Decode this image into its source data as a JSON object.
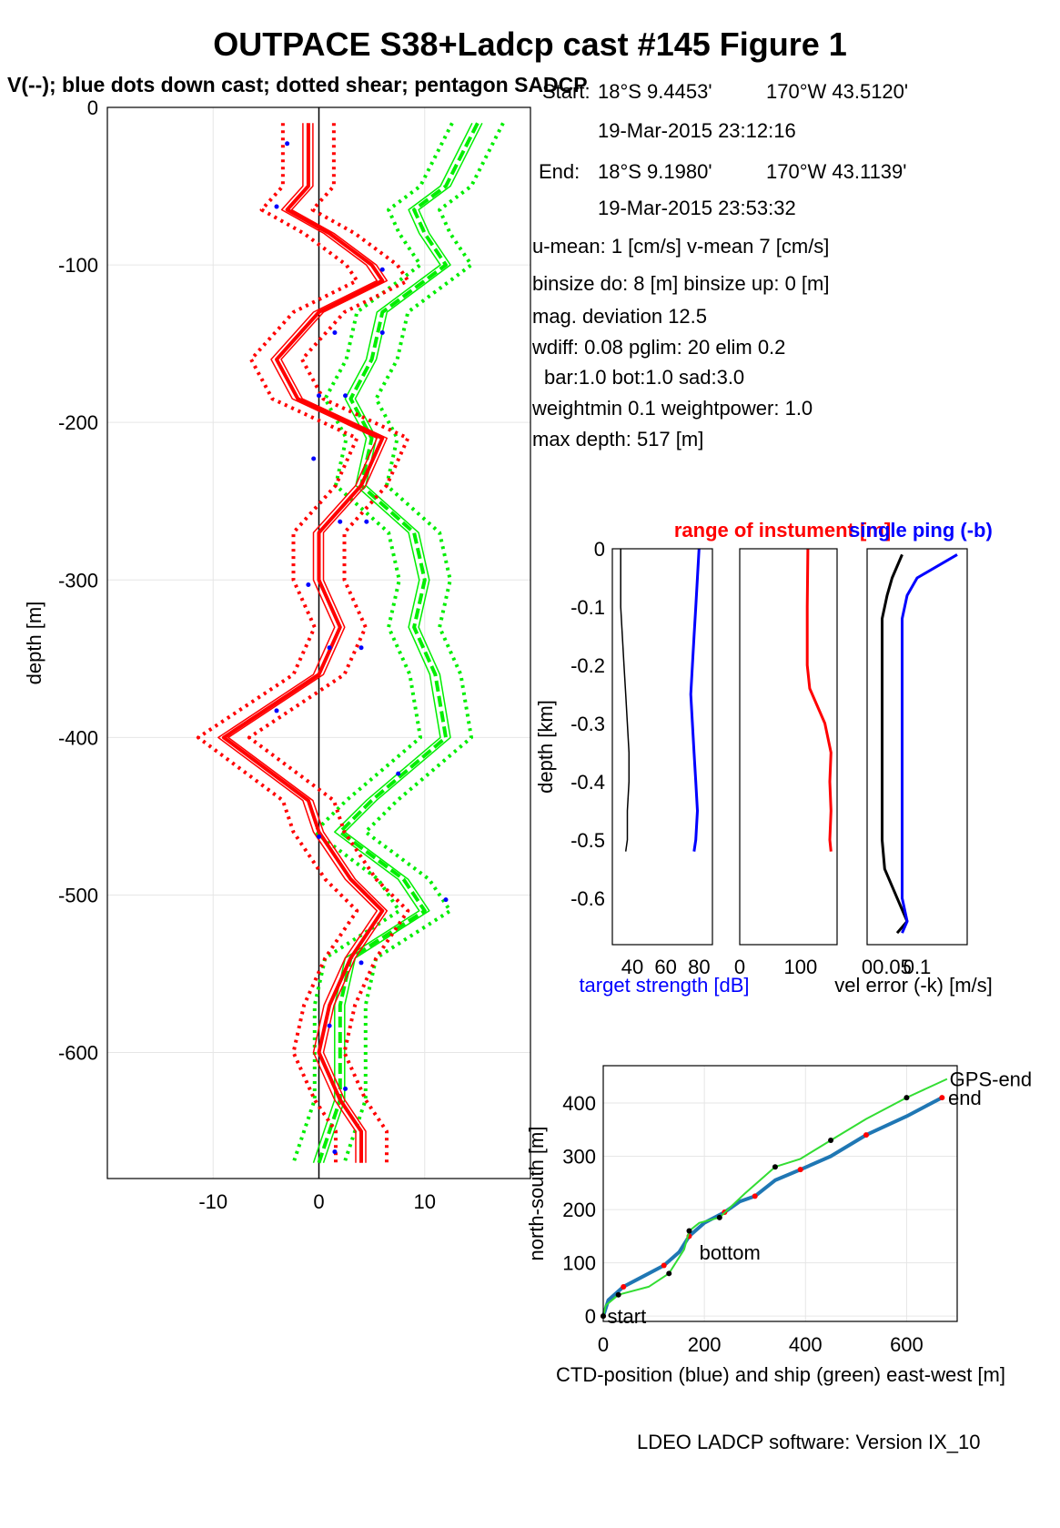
{
  "title": "OUTPACE S38+Ladcp cast #145  Figure 1",
  "subtitle": "V(--); blue dots down cast; dotted shear; pentagon SADCP",
  "info": {
    "start_label": "Start:",
    "start_lat": "18°S  9.4453'",
    "start_lon": "170°W 43.5120'",
    "start_time": "19-Mar-2015 23:12:16",
    "end_label": "End:",
    "end_lat": "18°S  9.1980'",
    "end_lon": "170°W 43.1139'",
    "end_time": "19-Mar-2015 23:53:32",
    "u_mean": "u-mean:   1 [cm/s]    v-mean   7 [cm/s]",
    "binsize": "binsize do: 8 [m]  binsize up:  0 [m]",
    "mag_dev": "mag. deviation 12.5",
    "wdiff": "wdiff: 0.08  pglim: 20  elim 0.2",
    "bar": "bar:1.0 bot:1.0 sad:3.0",
    "weightmin": "weightmin 0.1  weightpower: 1.0",
    "max_depth": "max depth: 517 [m]"
  },
  "footer": "LDEO LADCP software: Version IX_10",
  "colors": {
    "red": "#ff0000",
    "green": "#00ee00",
    "blue": "#0000ff",
    "ctd_blue": "#1f77b4",
    "ship_green": "#33dd33"
  },
  "chart_data": [
    {
      "type": "line",
      "name": "velocity-profile",
      "ylabel": "depth [m]",
      "xlabel": "",
      "xlim": [
        -20,
        20
      ],
      "ylim": [
        -680,
        0
      ],
      "xticks": [
        -10,
        0,
        10
      ],
      "yticks": [
        0,
        -100,
        -200,
        -300,
        -400,
        -500,
        -600
      ],
      "grid": true,
      "depth": [
        -10,
        -50,
        -65,
        -80,
        -100,
        -110,
        -130,
        -160,
        -185,
        -210,
        -240,
        -270,
        -300,
        -330,
        -360,
        -400,
        -440,
        -460,
        -490,
        -510,
        -540,
        -570,
        -600,
        -630,
        -650,
        -670
      ],
      "series": [
        {
          "name": "u",
          "color": "red",
          "values": [
            -1,
            -1,
            -3,
            1,
            5,
            6,
            0,
            -4,
            -2,
            6,
            4,
            0,
            0,
            2,
            0,
            -9,
            -1,
            0,
            3,
            6,
            3,
            1,
            0,
            2,
            4,
            4
          ]
        },
        {
          "name": "v",
          "color": "green",
          "values": [
            15,
            12,
            9,
            10,
            12,
            10,
            6,
            5,
            3,
            5,
            4,
            9,
            10,
            9,
            11,
            12,
            5,
            2,
            8,
            10,
            3,
            2,
            2,
            2,
            1,
            0
          ]
        }
      ],
      "down_cast_dots_x": [
        -3,
        -4,
        6,
        1.5,
        6,
        0,
        2.5,
        -0.5,
        2,
        4.5,
        -1,
        1,
        4,
        -4,
        7.5,
        0,
        12,
        4,
        1,
        2.5,
        1.5
      ],
      "down_cast_dots_depth": [
        -23,
        -63,
        -103,
        -143,
        -143,
        -183,
        -183,
        -223,
        -263,
        -263,
        -303,
        -343,
        -343,
        -383,
        -423,
        -463,
        -503,
        -543,
        -583,
        -623,
        -663
      ]
    },
    {
      "type": "line",
      "name": "target-strength",
      "ylabel": "depth [km]",
      "xlabel": "target strength [dB]",
      "xlim": [
        28,
        88
      ],
      "ylim": [
        -0.68,
        0
      ],
      "xticks": [
        40,
        60,
        80
      ],
      "yticks": [
        0,
        -0.1,
        -0.2,
        -0.3,
        -0.4,
        -0.5,
        -0.6
      ],
      "depth": [
        0,
        -0.05,
        -0.1,
        -0.15,
        -0.2,
        -0.25,
        -0.3,
        -0.35,
        -0.4,
        -0.45,
        -0.5,
        -0.52
      ],
      "series": [
        {
          "name": "target strength",
          "color": "blue",
          "values": [
            80,
            79,
            78,
            77,
            76,
            75,
            76,
            77,
            78,
            79,
            78,
            77
          ]
        },
        {
          "name": "range",
          "color": "black",
          "values": [
            33,
            33,
            33,
            34,
            35,
            36,
            37,
            38,
            38,
            37,
            37,
            36
          ]
        }
      ]
    },
    {
      "type": "line",
      "name": "range-of-instrument",
      "title": "range of instument [m]",
      "xlim": [
        0,
        160
      ],
      "ylim": [
        -0.68,
        0
      ],
      "xticks": [
        0,
        100
      ],
      "depth": [
        0,
        -0.1,
        -0.2,
        -0.24,
        -0.3,
        -0.35,
        -0.4,
        -0.45,
        -0.5,
        -0.52
      ],
      "series": [
        {
          "name": "range",
          "color": "red",
          "values": [
            112,
            111,
            111,
            115,
            140,
            150,
            148,
            150,
            148,
            150
          ]
        }
      ]
    },
    {
      "type": "line",
      "name": "vel-error",
      "title": "single ping (-b)",
      "xlabel": "vel error (-k) [m/s]",
      "xlim": [
        0,
        0.2
      ],
      "ylim": [
        -0.68,
        0
      ],
      "xticks": [
        0,
        0.05,
        0.1
      ],
      "depth": [
        -0.01,
        -0.05,
        -0.08,
        -0.12,
        -0.2,
        -0.3,
        -0.4,
        -0.5,
        -0.55,
        -0.6,
        -0.64,
        -0.66
      ],
      "series": [
        {
          "name": "vel error",
          "color": "black",
          "values": [
            0.07,
            0.05,
            0.04,
            0.03,
            0.03,
            0.03,
            0.03,
            0.03,
            0.035,
            0.06,
            0.08,
            0.06
          ]
        },
        {
          "name": "single ping",
          "color": "blue",
          "values": [
            0.18,
            0.1,
            0.08,
            0.07,
            0.07,
            0.07,
            0.07,
            0.07,
            0.07,
            0.07,
            0.08,
            0.07
          ]
        }
      ]
    },
    {
      "type": "line",
      "name": "ctd-position",
      "xlabel": "CTD-position (blue) and ship (green) east-west [m]",
      "ylabel": "north-south [m]",
      "xlim": [
        0,
        700
      ],
      "ylim": [
        -10,
        470
      ],
      "xticks": [
        0,
        200,
        400,
        600
      ],
      "yticks": [
        0,
        100,
        200,
        300,
        400
      ],
      "grid": true,
      "labels": [
        "start",
        "bottom",
        "end",
        "GPS-end"
      ],
      "series": [
        {
          "name": "CTD-position",
          "color": "ctd_blue",
          "x": [
            0,
            10,
            40,
            80,
            120,
            150,
            170,
            200,
            240,
            270,
            300,
            340,
            390,
            450,
            520,
            600,
            670
          ],
          "y": [
            0,
            30,
            55,
            75,
            95,
            120,
            150,
            175,
            195,
            215,
            225,
            255,
            275,
            300,
            340,
            375,
            410
          ]
        },
        {
          "name": "ship",
          "color": "ship_green",
          "x": [
            0,
            5,
            30,
            90,
            130,
            160,
            170,
            190,
            230,
            280,
            340,
            390,
            450,
            520,
            600,
            680
          ],
          "y": [
            0,
            20,
            40,
            55,
            80,
            125,
            160,
            175,
            185,
            230,
            280,
            295,
            330,
            370,
            410,
            445
          ]
        }
      ]
    }
  ]
}
